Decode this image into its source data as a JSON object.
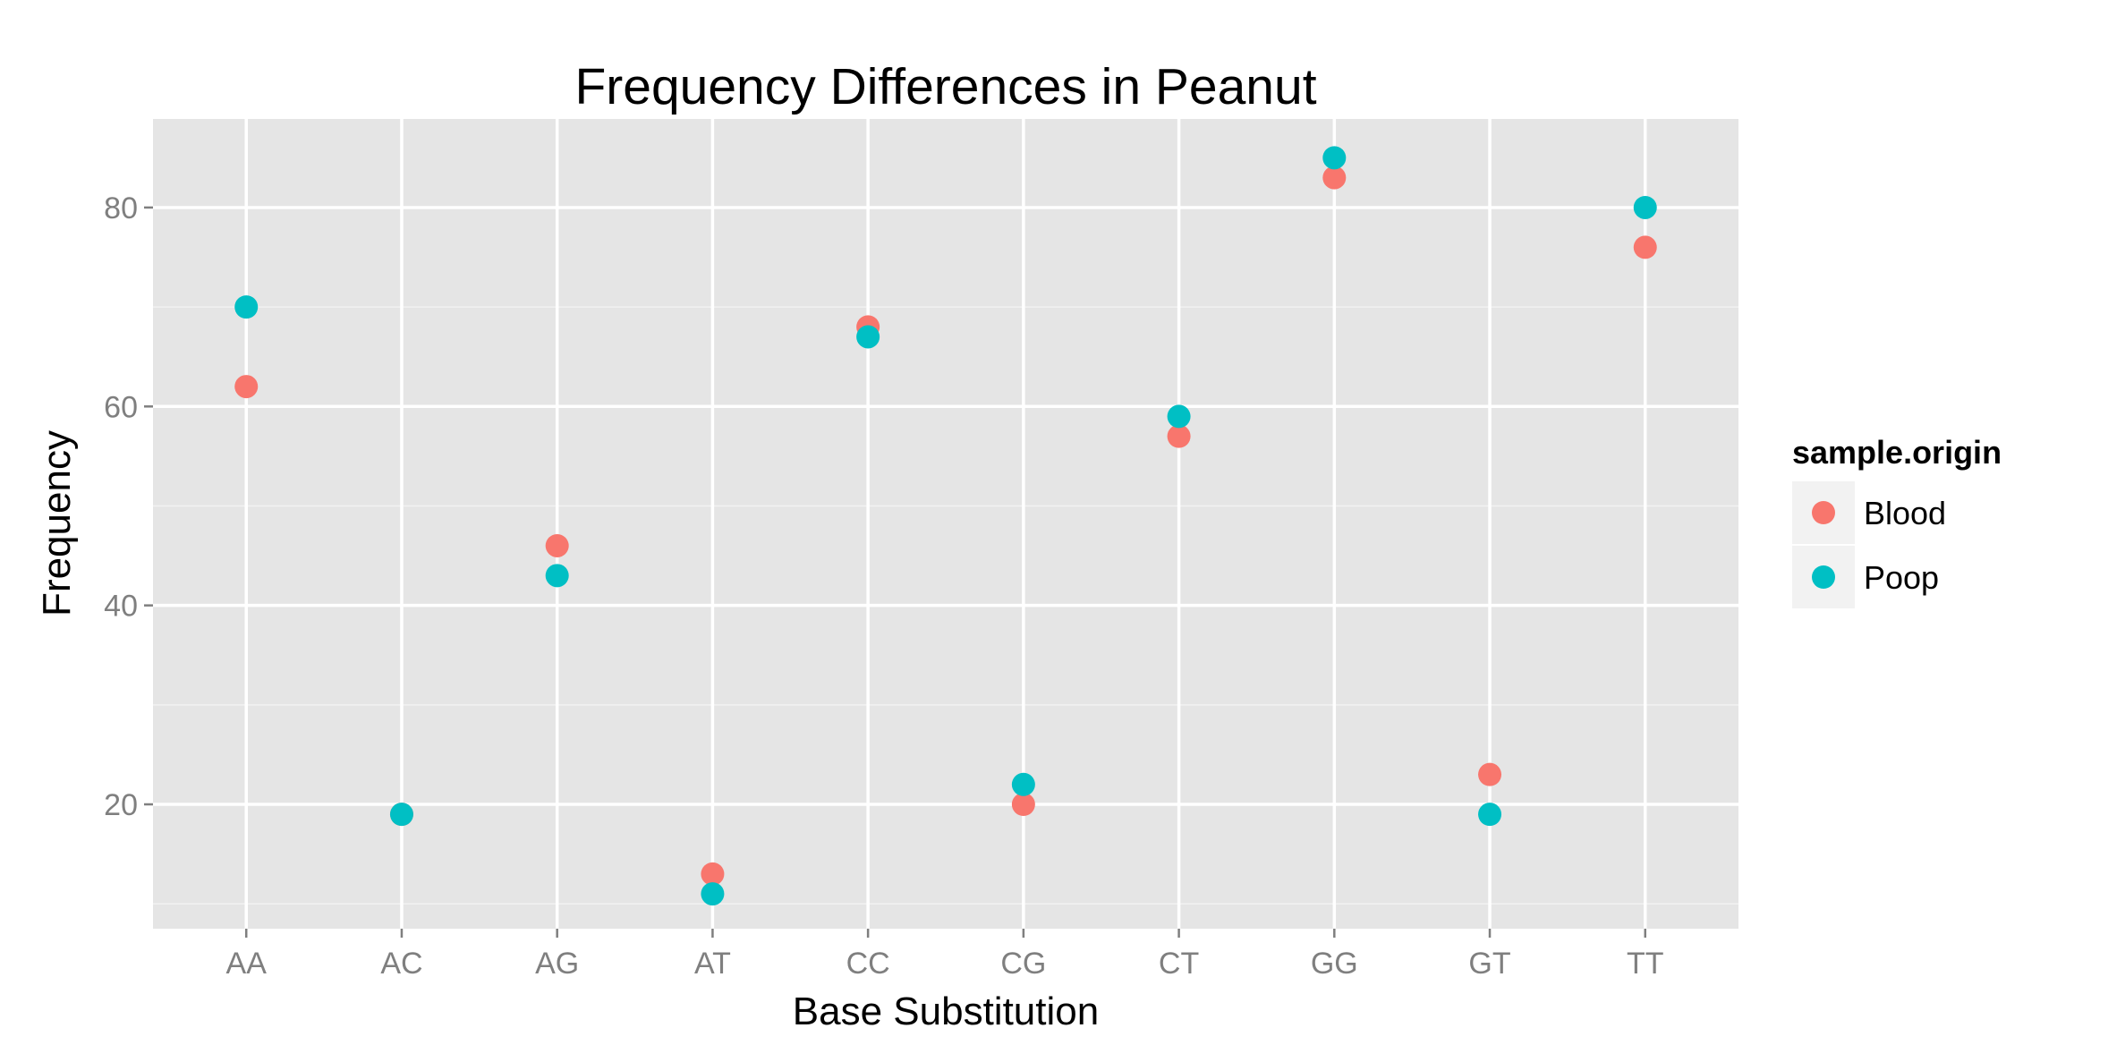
{
  "chart_data": {
    "type": "scatter",
    "title": "Frequency Differences in Peanut",
    "xlabel": "Base Substitution",
    "ylabel": "Frequency",
    "categories": [
      "AA",
      "AC",
      "AG",
      "AT",
      "CC",
      "CG",
      "CT",
      "GG",
      "GT",
      "TT"
    ],
    "y_ticks": [
      20,
      40,
      60,
      80
    ],
    "ylim": [
      7.5,
      88.9
    ],
    "grid": true,
    "legend": {
      "title": "sample.origin",
      "placement": "right"
    },
    "series": [
      {
        "name": "Blood",
        "color": "#F8766D",
        "values": [
          62,
          19,
          46,
          13,
          68,
          20,
          57,
          83,
          23,
          76
        ]
      },
      {
        "name": "Poop",
        "color": "#00BFC4",
        "values": [
          70,
          19,
          43,
          11,
          67,
          22,
          59,
          85,
          19,
          80
        ]
      }
    ]
  }
}
